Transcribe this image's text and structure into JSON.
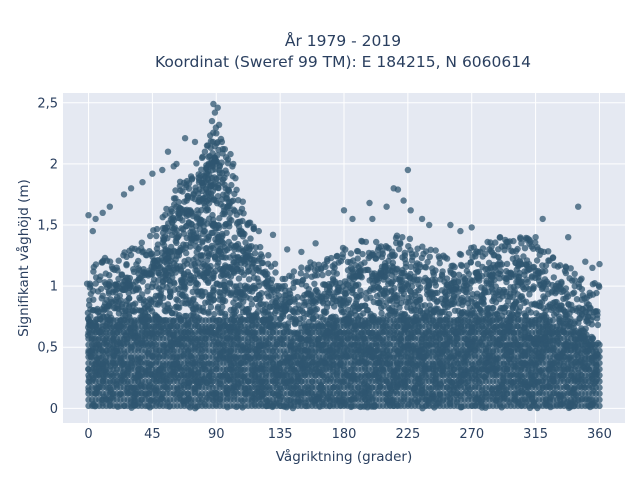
{
  "chart_data": {
    "type": "scatter",
    "title_lines": [
      "År 1979 - 2019",
      "Koordinat (Sweref 99 TM): E 184215, N 6060614"
    ],
    "xlabel": "Vågriktning (grader)",
    "ylabel": "Signifikant våghöjd (m)",
    "xlim": [
      -18,
      378
    ],
    "ylim": [
      -0.12,
      2.58
    ],
    "x_ticks": [
      0,
      45,
      90,
      135,
      180,
      225,
      270,
      315,
      360
    ],
    "x_tick_labels": [
      "0",
      "45",
      "90",
      "135",
      "180",
      "225",
      "270",
      "315",
      "360"
    ],
    "y_ticks": [
      0,
      0.5,
      1,
      1.5,
      2,
      2.5
    ],
    "y_tick_labels": [
      "0",
      "0,5",
      "1",
      "1,5",
      "2",
      "2,5"
    ],
    "grid": true,
    "background": "#e5e9f2",
    "marker_color": "#2f5670",
    "envelope": {
      "x": [
        0,
        10,
        20,
        30,
        40,
        50,
        55,
        60,
        65,
        70,
        75,
        80,
        85,
        88,
        90,
        92,
        95,
        100,
        105,
        110,
        115,
        120,
        130,
        140,
        150,
        160,
        170,
        180,
        190,
        200,
        210,
        220,
        225,
        230,
        240,
        250,
        260,
        270,
        280,
        290,
        300,
        310,
        315,
        320,
        330,
        340,
        350,
        360
      ],
      "upper": [
        0.95,
        1.0,
        1.05,
        1.1,
        1.15,
        1.3,
        1.5,
        1.6,
        1.7,
        1.75,
        1.8,
        1.9,
        2.05,
        2.1,
        2.1,
        2.05,
        1.95,
        1.8,
        1.6,
        1.4,
        1.3,
        1.2,
        1.0,
        0.9,
        0.95,
        1.0,
        1.05,
        1.1,
        1.15,
        1.15,
        1.2,
        1.2,
        1.2,
        1.15,
        1.1,
        1.05,
        1.05,
        1.1,
        1.15,
        1.2,
        1.2,
        1.2,
        1.15,
        1.1,
        1.0,
        0.95,
        0.85,
        0.8
      ]
    },
    "outliers": [
      {
        "x": 88,
        "y": 2.49
      },
      {
        "x": 91,
        "y": 2.46
      },
      {
        "x": 89,
        "y": 2.42
      },
      {
        "x": 87,
        "y": 2.35
      },
      {
        "x": 92,
        "y": 2.32
      },
      {
        "x": 90,
        "y": 2.25
      },
      {
        "x": 94,
        "y": 2.18
      },
      {
        "x": 96,
        "y": 2.12
      },
      {
        "x": 68,
        "y": 2.21
      },
      {
        "x": 75,
        "y": 2.18
      },
      {
        "x": 56,
        "y": 2.1
      },
      {
        "x": 80,
        "y": 2.05
      },
      {
        "x": 100,
        "y": 2.08
      },
      {
        "x": 84,
        "y": 2.15
      },
      {
        "x": 45,
        "y": 1.92
      },
      {
        "x": 52,
        "y": 1.95
      },
      {
        "x": 60,
        "y": 1.98
      },
      {
        "x": 62,
        "y": 2.0
      },
      {
        "x": 102,
        "y": 2.0
      },
      {
        "x": 30,
        "y": 1.8
      },
      {
        "x": 38,
        "y": 1.85
      },
      {
        "x": 25,
        "y": 1.75
      },
      {
        "x": 15,
        "y": 1.65
      },
      {
        "x": 10,
        "y": 1.6
      },
      {
        "x": 5,
        "y": 1.55
      },
      {
        "x": 0,
        "y": 1.58
      },
      {
        "x": 3,
        "y": 1.45
      },
      {
        "x": 215,
        "y": 1.8
      },
      {
        "x": 218,
        "y": 1.79
      },
      {
        "x": 210,
        "y": 1.65
      },
      {
        "x": 225,
        "y": 1.95
      },
      {
        "x": 222,
        "y": 1.7
      },
      {
        "x": 227,
        "y": 1.62
      },
      {
        "x": 180,
        "y": 1.62
      },
      {
        "x": 198,
        "y": 1.68
      },
      {
        "x": 186,
        "y": 1.55
      },
      {
        "x": 200,
        "y": 1.55
      },
      {
        "x": 235,
        "y": 1.55
      },
      {
        "x": 240,
        "y": 1.5
      },
      {
        "x": 255,
        "y": 1.5
      },
      {
        "x": 262,
        "y": 1.45
      },
      {
        "x": 270,
        "y": 1.48
      },
      {
        "x": 290,
        "y": 1.4
      },
      {
        "x": 305,
        "y": 1.35
      },
      {
        "x": 315,
        "y": 1.4
      },
      {
        "x": 320,
        "y": 1.55
      },
      {
        "x": 345,
        "y": 1.65
      },
      {
        "x": 338,
        "y": 1.4
      },
      {
        "x": 350,
        "y": 1.2
      },
      {
        "x": 355,
        "y": 1.15
      },
      {
        "x": 360,
        "y": 1.18
      },
      {
        "x": 140,
        "y": 1.3
      },
      {
        "x": 150,
        "y": 1.28
      },
      {
        "x": 160,
        "y": 1.35
      },
      {
        "x": 130,
        "y": 1.42
      },
      {
        "x": 120,
        "y": 1.45
      },
      {
        "x": 112,
        "y": 1.5
      }
    ]
  }
}
